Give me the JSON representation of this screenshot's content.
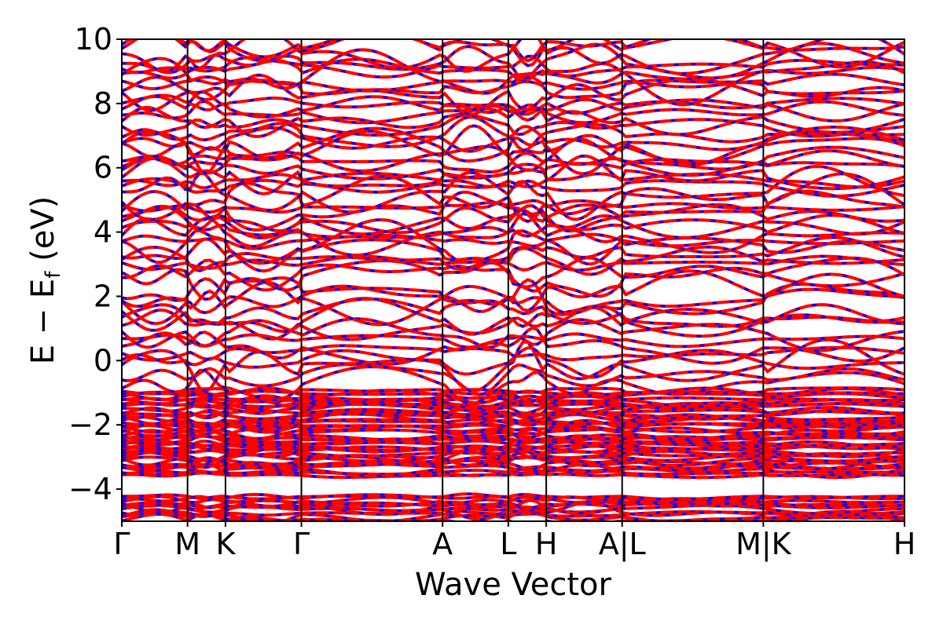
{
  "chart_data": {
    "type": "line",
    "title": "",
    "xlabel": "Wave Vector",
    "ylabel": "E − E_f (eV)",
    "ylabel_parts": {
      "main": "E − E",
      "sub": "f",
      "unit": " (eV)"
    },
    "ylim": [
      -5,
      10
    ],
    "yticks": [
      -4,
      -2,
      0,
      2,
      4,
      6,
      8,
      10
    ],
    "ytick_labels": [
      "−4",
      "−2",
      "0",
      "2",
      "4",
      "6",
      "8",
      "10"
    ],
    "kpath": [
      {
        "label": "Γ",
        "x": 0
      },
      {
        "label": "M",
        "x": 0.5774
      },
      {
        "label": "K",
        "x": 0.9107
      },
      {
        "label": "Γ",
        "x": 1.5774
      },
      {
        "label": "A",
        "x": 2.8174
      },
      {
        "label": "L",
        "x": 3.3948
      },
      {
        "label": "H",
        "x": 3.7281
      },
      {
        "label": "A|L",
        "x": 4.3948
      },
      {
        "label": "M|K",
        "x": 5.6348
      },
      {
        "label": "H",
        "x": 6.8748
      }
    ],
    "xlim": [
      0,
      6.8748
    ],
    "grid": false,
    "legend": "none",
    "series_styles": [
      {
        "color": "#ff0000",
        "style": "solid"
      },
      {
        "color": "#0000ff",
        "style": "dashed"
      }
    ],
    "band_regions": [
      {
        "from": -5.0,
        "to": -4.2,
        "approx_bands": 12
      },
      {
        "from": -3.6,
        "to": -0.9,
        "approx_bands": 40
      },
      {
        "from": -0.8,
        "to": 2.3,
        "approx_bands": 14
      },
      {
        "from": 2.5,
        "to": 10.0,
        "approx_bands": 40
      }
    ]
  }
}
